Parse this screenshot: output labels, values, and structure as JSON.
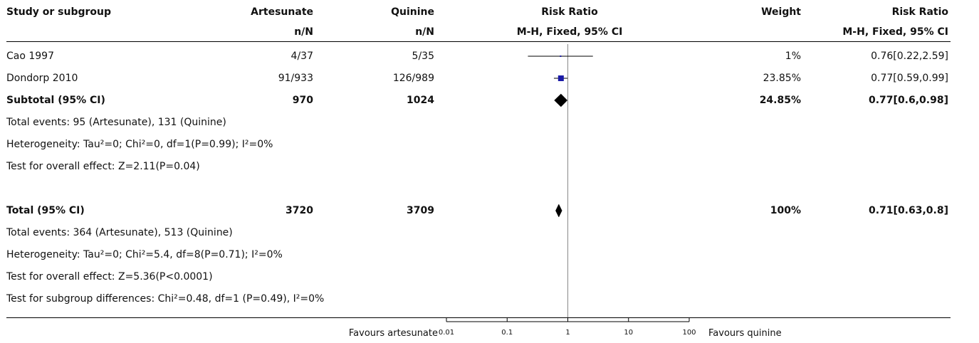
{
  "header": {
    "study": "Study or subgroup",
    "exp": "Artesunate",
    "ctrl": "Quinine",
    "rr": "Risk Ratio",
    "weight": "Weight",
    "rr2": "Risk Ratio",
    "exp_sub": "n/N",
    "ctrl_sub": "n/N",
    "rr_sub": "M-H, Fixed, 95% CI",
    "rr2_sub": "M-H, Fixed, 95% CI"
  },
  "studies": [
    {
      "name": "Cao 1997",
      "exp": "4/37",
      "ctrl": "5/35",
      "weight": "1%",
      "ci_text": "0.76[0.22,2.59]"
    },
    {
      "name": "Dondorp 2010",
      "exp": "91/933",
      "ctrl": "126/989",
      "weight": "23.85%",
      "ci_text": "0.77[0.59,0.99]"
    }
  ],
  "subtotal": {
    "name": "Subtotal (95% CI)",
    "exp": "970",
    "ctrl": "1024",
    "weight": "24.85%",
    "ci_text": "0.77[0.6,0.98]"
  },
  "subtotal_notes": [
    "Total events: 95 (Artesunate), 131 (Quinine)",
    "Heterogeneity: Tau²=0; Chi²=0, df=1(P=0.99); I²=0%",
    "Test for overall effect: Z=2.11(P=0.04)"
  ],
  "total": {
    "name": "Total (95% CI)",
    "exp": "3720",
    "ctrl": "3709",
    "weight": "100%",
    "ci_text": "0.71[0.63,0.8]"
  },
  "total_notes": [
    "Total events: 364 (Artesunate), 513 (Quinine)",
    "Heterogeneity: Tau²=0; Chi²=5.4, df=8(P=0.71); I²=0%",
    "Test for overall effect: Z=5.36(P<0.0001)",
    "Test for subgroup differences: Chi²=0.48, df=1 (P=0.49), I²=0%"
  ],
  "axis": {
    "left_caption": "Favours artesunate",
    "right_caption": "Favours quinine"
  },
  "colors": {
    "box": "#1a1aa6",
    "line": "#000000",
    "rule": "#888888"
  },
  "chart_data": {
    "type": "forest",
    "xscale": "log",
    "xlim": [
      0.01,
      100
    ],
    "ticks": [
      0.01,
      0.1,
      1,
      10,
      100
    ],
    "tick_labels": [
      "0.01",
      "0.1",
      "1",
      "10",
      "100"
    ],
    "null_value": 1,
    "studies": [
      {
        "name": "Cao 1997",
        "rr": 0.76,
        "lo": 0.22,
        "hi": 2.59,
        "weight": 1
      },
      {
        "name": "Dondorp 2010",
        "rr": 0.77,
        "lo": 0.59,
        "hi": 0.99,
        "weight": 23.85
      }
    ],
    "subtotal": {
      "rr": 0.77,
      "lo": 0.6,
      "hi": 0.98
    },
    "total": {
      "rr": 0.71,
      "lo": 0.63,
      "hi": 0.8
    }
  }
}
